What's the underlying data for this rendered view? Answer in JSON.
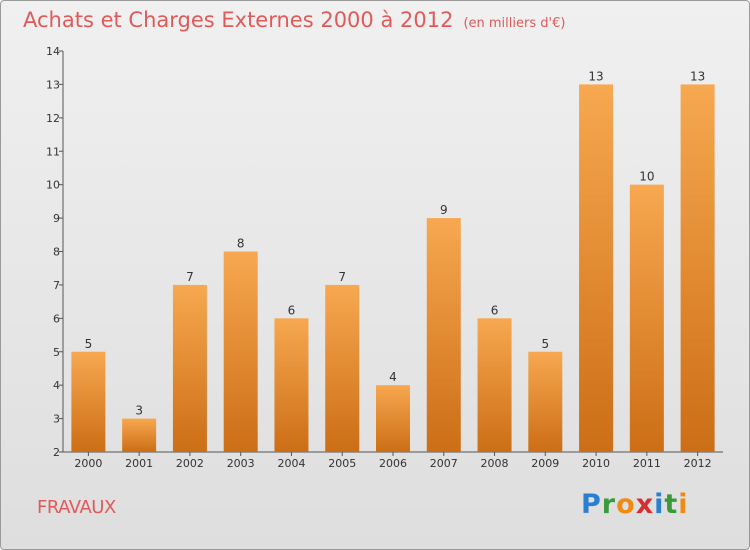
{
  "title": "Achats et Charges Externes 2000 à 2012",
  "unit": "(en milliers d'€)",
  "commune": "FRAVAUX",
  "logo": {
    "letters": [
      "P",
      "r",
      "o",
      "x",
      "i",
      "t",
      "i"
    ],
    "colors": [
      "#2a7fd4",
      "#3a9a3a",
      "#f08a10",
      "#d43030",
      "#2a7fd4",
      "#3a9a3a",
      "#f08a10"
    ]
  },
  "colors": {
    "bar_top": "#f7a850",
    "bar_bottom": "#cc6e16",
    "title": "#e05a5a"
  },
  "chart_data": {
    "type": "bar",
    "categories": [
      "2000",
      "2001",
      "2002",
      "2003",
      "2004",
      "2005",
      "2006",
      "2007",
      "2008",
      "2009",
      "2010",
      "2011",
      "2012"
    ],
    "values": [
      5,
      3,
      7,
      8,
      6,
      7,
      4,
      9,
      6,
      5,
      13,
      10,
      13
    ],
    "value_labels": [
      "5",
      "3",
      "7",
      "8",
      "6",
      "7",
      "4",
      "9",
      "6",
      "5",
      "13",
      "10",
      "13"
    ],
    "yticks": [
      "2",
      "3",
      "4",
      "5",
      "6",
      "7",
      "8",
      "9",
      "10",
      "11",
      "12",
      "13",
      "14"
    ],
    "ylim": [
      2,
      14
    ],
    "grid": false,
    "legend": "none"
  }
}
